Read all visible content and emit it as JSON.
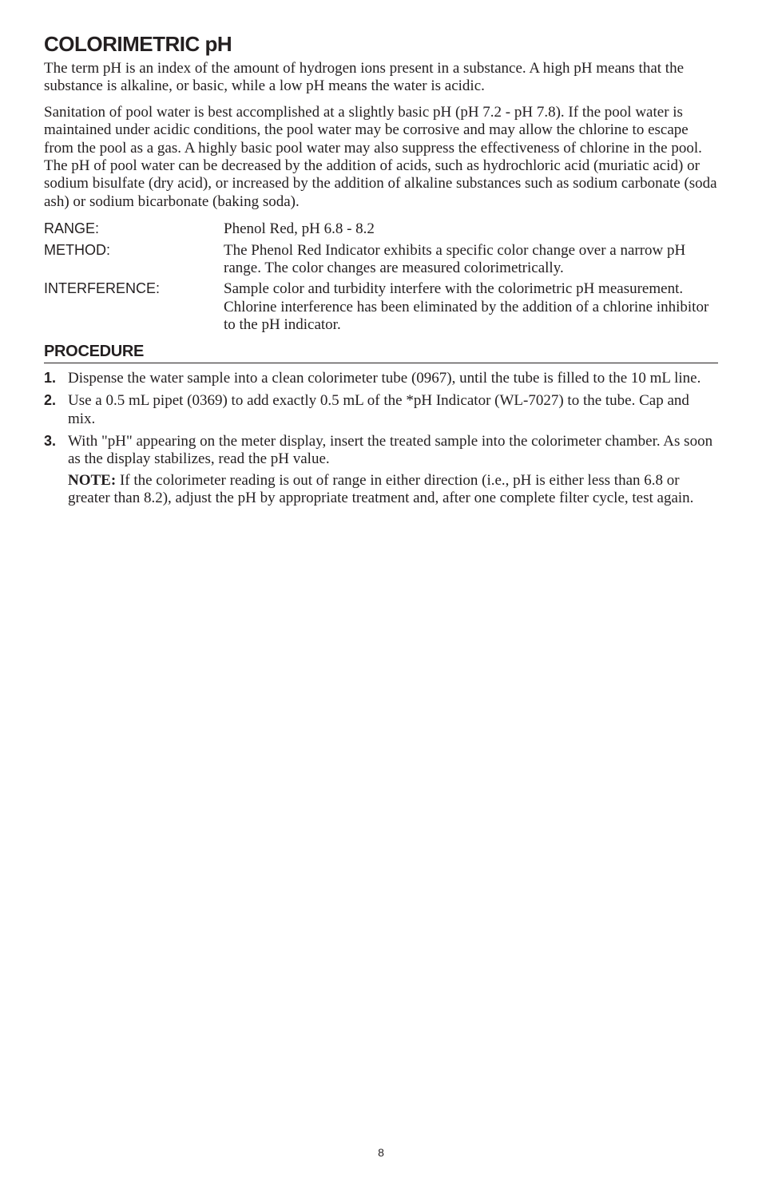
{
  "title": "COLORIMETRIC pH",
  "intro1": "The term pH is an index of the amount of hydrogen ions present in a substance. A high pH means that the substance is alkaline, or basic, while a low pH means the water is acidic.",
  "intro2": "Sanitation of pool water is best accomplished at a slightly basic pH (pH 7.2 - pH 7.8). If the pool water is maintained under acidic conditions, the pool water may be corrosive and may allow the chlorine to escape from the pool as a gas. A highly basic pool water may also suppress the effectiveness of chlorine in the pool. The pH of pool water can be decreased by the addition of acids, such as hydrochloric acid (muriatic acid) or sodium bisulfate (dry acid), or increased by the addition of alkaline substances such as sodium carbonate (soda ash) or sodium bicarbonate (baking soda).",
  "defs": {
    "range_label": "RANGE:",
    "range_value": "Phenol Red, pH 6.8 - 8.2",
    "method_label": "METHOD:",
    "method_value": "The Phenol Red Indicator exhibits a specific color change over a narrow pH range. The color changes are measured colorimetrically.",
    "interference_label": "INTERFERENCE:",
    "interference_value": "Sample color and turbidity interfere with the colorimetric pH measurement. Chlorine interference has been eliminated by the addition of a chlorine inhibitor to the pH indicator."
  },
  "procedure_heading": "PROCEDURE",
  "steps": [
    {
      "num": "1.",
      "text": "Dispense the water sample into a clean colorimeter tube (0967), until the tube is filled to the 10 mL line."
    },
    {
      "num": "2.",
      "text": "Use a 0.5 mL pipet (0369) to add exactly 0.5 mL of the *pH Indicator (WL-7027) to the tube. Cap and mix."
    },
    {
      "num": "3.",
      "text": "With \"pH\" appearing on the meter display, insert the treated sample into the colorimeter chamber. As soon as the display stabilizes, read the pH value.",
      "note_label": "NOTE:",
      "note_text": " If the colorimeter reading is out of range in either direction (i.e., pH is either less than 6.8 or greater than 8.2), adjust the pH by appropriate treatment and, after one complete filter cycle, test again."
    }
  ],
  "page_number": "8"
}
